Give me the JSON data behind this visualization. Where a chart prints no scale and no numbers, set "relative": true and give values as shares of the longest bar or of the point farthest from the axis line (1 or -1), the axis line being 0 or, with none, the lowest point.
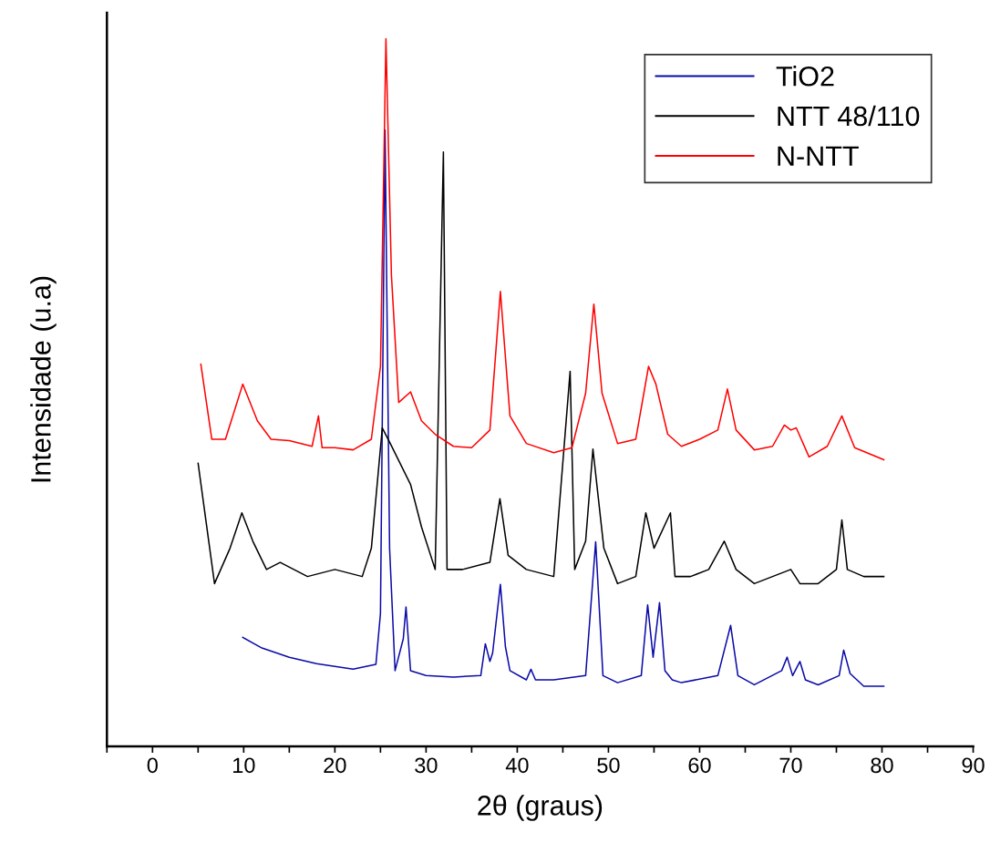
{
  "chart_data": {
    "type": "line",
    "relative": true,
    "xlabel": "2θ (graus)",
    "ylabel": "Intensidade (u.a)",
    "xlim": [
      -5,
      90
    ],
    "xticks": [
      {
        "value": -5,
        "label": null
      },
      0,
      {
        "value": 5,
        "label": null
      },
      10,
      {
        "value": 15,
        "label": null
      },
      20,
      {
        "value": 25,
        "label": null
      },
      30,
      {
        "value": 35,
        "label": null
      },
      40,
      {
        "value": 45,
        "label": null
      },
      50,
      {
        "value": 55,
        "label": null
      },
      60,
      {
        "value": 65,
        "label": null
      },
      70,
      {
        "value": 75,
        "label": null
      },
      80,
      {
        "value": 85,
        "label": null
      },
      90
    ],
    "tick_labels": "x",
    "grid": false,
    "legend": "top right",
    "marker": "none",
    "line_style": "solid",
    "series": [
      {
        "name": "TiO2",
        "color": "#0a0aa8",
        "x": [
          9.9,
          12,
          15,
          18,
          22,
          24.5,
          25.0,
          25.5,
          26.0,
          26.6,
          27.5,
          27.8,
          28.3,
          30,
          33,
          36,
          36.5,
          37.0,
          37.3,
          38.15,
          38.7,
          39.2,
          41,
          41.5,
          42,
          44,
          47.5,
          48.6,
          49.4,
          51,
          53.6,
          54.3,
          54.9,
          55.6,
          56.2,
          57,
          58,
          62,
          63.4,
          64.2,
          66,
          69,
          69.6,
          70.2,
          71.0,
          71.6,
          73,
          75.3,
          75.8,
          76.5,
          78,
          80.2
        ],
        "values": [
          0.154,
          0.139,
          0.126,
          0.117,
          0.109,
          0.116,
          0.188,
          0.871,
          0.28,
          0.107,
          0.152,
          0.197,
          0.107,
          0.1,
          0.098,
          0.1,
          0.145,
          0.12,
          0.132,
          0.229,
          0.141,
          0.107,
          0.094,
          0.109,
          0.094,
          0.094,
          0.1,
          0.289,
          0.1,
          0.09,
          0.1,
          0.2,
          0.126,
          0.203,
          0.107,
          0.094,
          0.09,
          0.1,
          0.171,
          0.1,
          0.087,
          0.107,
          0.126,
          0.1,
          0.12,
          0.094,
          0.087,
          0.1,
          0.136,
          0.103,
          0.085,
          0.085
        ]
      },
      {
        "name": "NTT 48/110",
        "color": "#000000",
        "x": [
          5.0,
          6.8,
          8.5,
          9.8,
          11,
          12.5,
          14,
          17,
          20,
          23,
          24,
          25.2,
          26,
          28.3,
          29.5,
          31,
          31.9,
          32.3,
          34,
          37,
          38.1,
          39,
          41,
          44,
          45.8,
          46.3,
          47.5,
          48.3,
          49.5,
          51,
          53,
          54.1,
          55,
          56.8,
          57.3,
          59,
          61,
          62.7,
          64,
          66,
          68,
          70,
          71,
          73,
          75,
          75.6,
          76.2,
          78,
          80.2
        ],
        "values": [
          0.4,
          0.23,
          0.28,
          0.33,
          0.29,
          0.25,
          0.26,
          0.24,
          0.25,
          0.24,
          0.28,
          0.45,
          0.43,
          0.37,
          0.31,
          0.25,
          0.84,
          0.25,
          0.25,
          0.26,
          0.35,
          0.27,
          0.25,
          0.24,
          0.53,
          0.25,
          0.29,
          0.42,
          0.28,
          0.23,
          0.24,
          0.33,
          0.28,
          0.33,
          0.24,
          0.24,
          0.25,
          0.29,
          0.25,
          0.23,
          0.24,
          0.25,
          0.23,
          0.23,
          0.25,
          0.32,
          0.25,
          0.24,
          0.24
        ]
      },
      {
        "name": "N-NTT",
        "color": "#ff0000",
        "x": [
          5.3,
          6.5,
          8,
          9.9,
          11.5,
          13,
          15,
          17.5,
          18.2,
          18.6,
          20,
          22,
          24,
          25,
          25.6,
          26.2,
          27,
          28.3,
          29.5,
          31,
          33,
          35,
          37,
          38.15,
          39.2,
          41,
          44,
          46,
          47.5,
          48.4,
          49.3,
          51,
          53,
          54.4,
          55.2,
          56.5,
          58,
          60,
          62,
          63.05,
          64,
          66,
          68,
          69.3,
          70,
          70.6,
          72,
          74,
          75.6,
          77,
          80.2
        ],
        "values": [
          0.54,
          0.434,
          0.434,
          0.512,
          0.46,
          0.434,
          0.432,
          0.424,
          0.467,
          0.422,
          0.422,
          0.419,
          0.434,
          0.537,
          1.0,
          0.666,
          0.486,
          0.501,
          0.46,
          0.441,
          0.424,
          0.422,
          0.447,
          0.643,
          0.467,
          0.428,
          0.415,
          0.422,
          0.499,
          0.625,
          0.499,
          0.428,
          0.434,
          0.537,
          0.512,
          0.441,
          0.424,
          0.434,
          0.447,
          0.505,
          0.447,
          0.419,
          0.424,
          0.454,
          0.447,
          0.45,
          0.409,
          0.424,
          0.467,
          0.422,
          0.405
        ]
      }
    ]
  }
}
